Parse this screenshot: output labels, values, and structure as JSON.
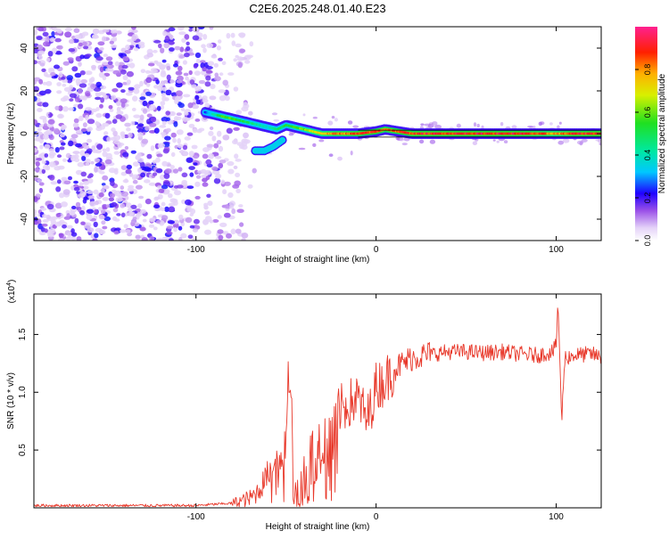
{
  "title": "C2E6.2025.248.01.40.E23",
  "chart_data": [
    {
      "type": "heatmap",
      "xlabel": "Height of straight line (km)",
      "ylabel": "Frequency (Hz)",
      "xlim": [
        -190,
        125
      ],
      "ylim": [
        -50,
        50
      ],
      "xticks": [
        -100,
        0,
        100
      ],
      "xtick_labels": [
        "-100",
        "0",
        "100"
      ],
      "yticks": [
        -40,
        -20,
        0,
        20,
        40
      ],
      "ytick_labels": [
        "-40",
        "-20",
        "0",
        "20",
        "40"
      ],
      "ridge": {
        "x": [
          -95,
          -90,
          -85,
          -80,
          -75,
          -70,
          -65,
          -60,
          -55,
          -50,
          -45,
          -40,
          -35,
          -30,
          -25,
          -20,
          -10,
          0,
          5,
          20,
          50,
          80,
          100,
          110,
          125
        ],
        "y": [
          10,
          9,
          8,
          7,
          6,
          5,
          4,
          3,
          2,
          4,
          3,
          2,
          1,
          0,
          0,
          0,
          0,
          1,
          2,
          0,
          0,
          0,
          0,
          0,
          0
        ],
        "amplitude": [
          0.25,
          0.45,
          0.65,
          0.6,
          0.55,
          0.5,
          0.45,
          0.4,
          0.5,
          0.55,
          0.6,
          0.65,
          0.75,
          0.8,
          0.85,
          0.88,
          0.92,
          0.95,
          0.9,
          0.95,
          0.97,
          0.97,
          0.85,
          0.95,
          0.97
        ]
      },
      "secondary_ridge": {
        "x": [
          -67,
          -62,
          -57,
          -52
        ],
        "y": [
          -8,
          -8,
          -6,
          -3
        ]
      },
      "noise_region_x": [
        -190,
        -95
      ],
      "colorbar": {
        "label": "Normalized spectral amplitude",
        "range": [
          0,
          1
        ],
        "ticks": [
          0.0,
          0.2,
          0.4,
          0.6,
          0.8
        ],
        "tick_labels": [
          "0.0",
          "0.2",
          "0.4",
          "0.6",
          "0.8"
        ],
        "colors": [
          "#ffffff",
          "#c8a8f0",
          "#7a1ed8",
          "#0000ff",
          "#00c8ff",
          "#00e040",
          "#c8f000",
          "#ffd000",
          "#ff5000",
          "#ff0000",
          "#ff0080"
        ]
      }
    },
    {
      "type": "line",
      "xlabel": "Height of straight line (km)",
      "ylabel": "SNR (10 * v/v)",
      "y_multiplier": "(x10",
      "y_multiplier_exp": "4",
      "y_multiplier_close": ")",
      "xlim": [
        -190,
        125
      ],
      "ylim": [
        0,
        1.85
      ],
      "xticks": [
        -100,
        0,
        100
      ],
      "xtick_labels": [
        "-100",
        "0",
        "100"
      ],
      "yticks": [
        0.5,
        1.0,
        1.5
      ],
      "ytick_labels": [
        "0.5",
        "1.0",
        "1.5"
      ],
      "line_color": "#e8382a",
      "series": [
        {
          "name": "SNR",
          "x": [
            -190,
            -160,
            -130,
            -100,
            -90,
            -80,
            -70,
            -65,
            -60,
            -55,
            -50,
            -48,
            -46,
            -44,
            -42,
            -40,
            -35,
            -30,
            -25,
            -20,
            -15,
            -10,
            -5,
            0,
            5,
            10,
            15,
            20,
            30,
            40,
            50,
            60,
            70,
            80,
            90,
            98,
            100,
            101,
            102,
            103,
            104,
            105,
            110,
            120,
            125
          ],
          "y": [
            0.02,
            0.02,
            0.02,
            0.02,
            0.03,
            0.04,
            0.08,
            0.15,
            0.3,
            0.5,
            0.7,
            1.25,
            0.3,
            0.15,
            0.1,
            0.3,
            0.45,
            0.6,
            0.7,
            0.85,
            0.9,
            0.95,
            0.75,
            1.05,
            1.1,
            1.2,
            1.25,
            1.3,
            1.33,
            1.35,
            1.35,
            1.34,
            1.35,
            1.33,
            1.32,
            1.35,
            1.4,
            1.8,
            1.3,
            0.7,
            1.1,
            1.3,
            1.32,
            1.33,
            1.3
          ]
        }
      ]
    }
  ]
}
